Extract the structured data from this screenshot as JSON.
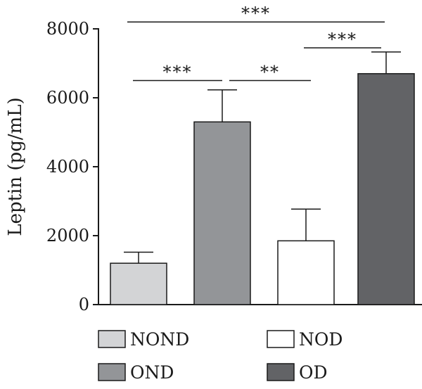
{
  "chart_data": {
    "type": "bar",
    "ylabel": "Leptin (pg/mL)",
    "ylim": [
      0,
      8000
    ],
    "yticks": [
      0,
      2000,
      4000,
      6000,
      8000
    ],
    "categories": [
      "NOND",
      "OND",
      "NOD",
      "OD"
    ],
    "values": [
      1200,
      5300,
      1850,
      6700
    ],
    "errors": [
      320,
      930,
      920,
      630
    ],
    "colors": [
      "#d3d4d6",
      "#939598",
      "#ffffff",
      "#626366"
    ],
    "significance": [
      {
        "from": 1,
        "to": 2,
        "y": 6500,
        "label": "***"
      },
      {
        "from": 2,
        "to": 3,
        "y": 6500,
        "label": "**"
      },
      {
        "from": 3,
        "to": 4,
        "y": 7450,
        "label": "***"
      },
      {
        "from": 1,
        "to": 4,
        "y": 8200,
        "label": "***"
      }
    ],
    "legend": [
      {
        "label": "NOND",
        "color": "#d3d4d6"
      },
      {
        "label": "NOD",
        "color": "#ffffff"
      },
      {
        "label": "OND",
        "color": "#939598"
      },
      {
        "label": "OD",
        "color": "#626366"
      }
    ]
  }
}
